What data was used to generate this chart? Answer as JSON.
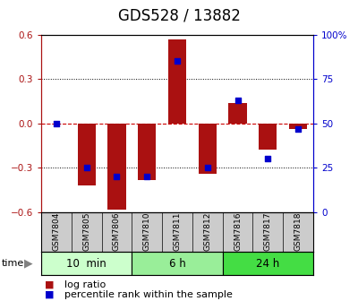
{
  "title": "GDS528 / 13882",
  "samples": [
    "GSM7804",
    "GSM7805",
    "GSM7806",
    "GSM7810",
    "GSM7811",
    "GSM7812",
    "GSM7816",
    "GSM7817",
    "GSM7818"
  ],
  "log_ratio": [
    0.0,
    -0.42,
    -0.58,
    -0.38,
    0.57,
    -0.34,
    0.14,
    -0.18,
    -0.04
  ],
  "percentile_rank": [
    50,
    25,
    20,
    20,
    85,
    25,
    63,
    30,
    47
  ],
  "groups": [
    {
      "label": "10  min",
      "start": 0,
      "end": 3,
      "color": "#ccffcc"
    },
    {
      "label": "6 h",
      "start": 3,
      "end": 6,
      "color": "#99ee99"
    },
    {
      "label": "24 h",
      "start": 6,
      "end": 9,
      "color": "#44dd44"
    }
  ],
  "ylim": [
    -0.6,
    0.6
  ],
  "yticks_left": [
    -0.6,
    -0.3,
    0.0,
    0.3,
    0.6
  ],
  "yticks_right": [
    0,
    25,
    50,
    75,
    100
  ],
  "bar_color": "#aa1111",
  "dot_color": "#0000cc",
  "zero_line_color": "#cc0000",
  "grid_color": "#000000",
  "bg_color": "#ffffff",
  "sample_bg": "#cccccc",
  "title_fontsize": 12,
  "tick_fontsize": 7.5,
  "legend_fontsize": 8
}
